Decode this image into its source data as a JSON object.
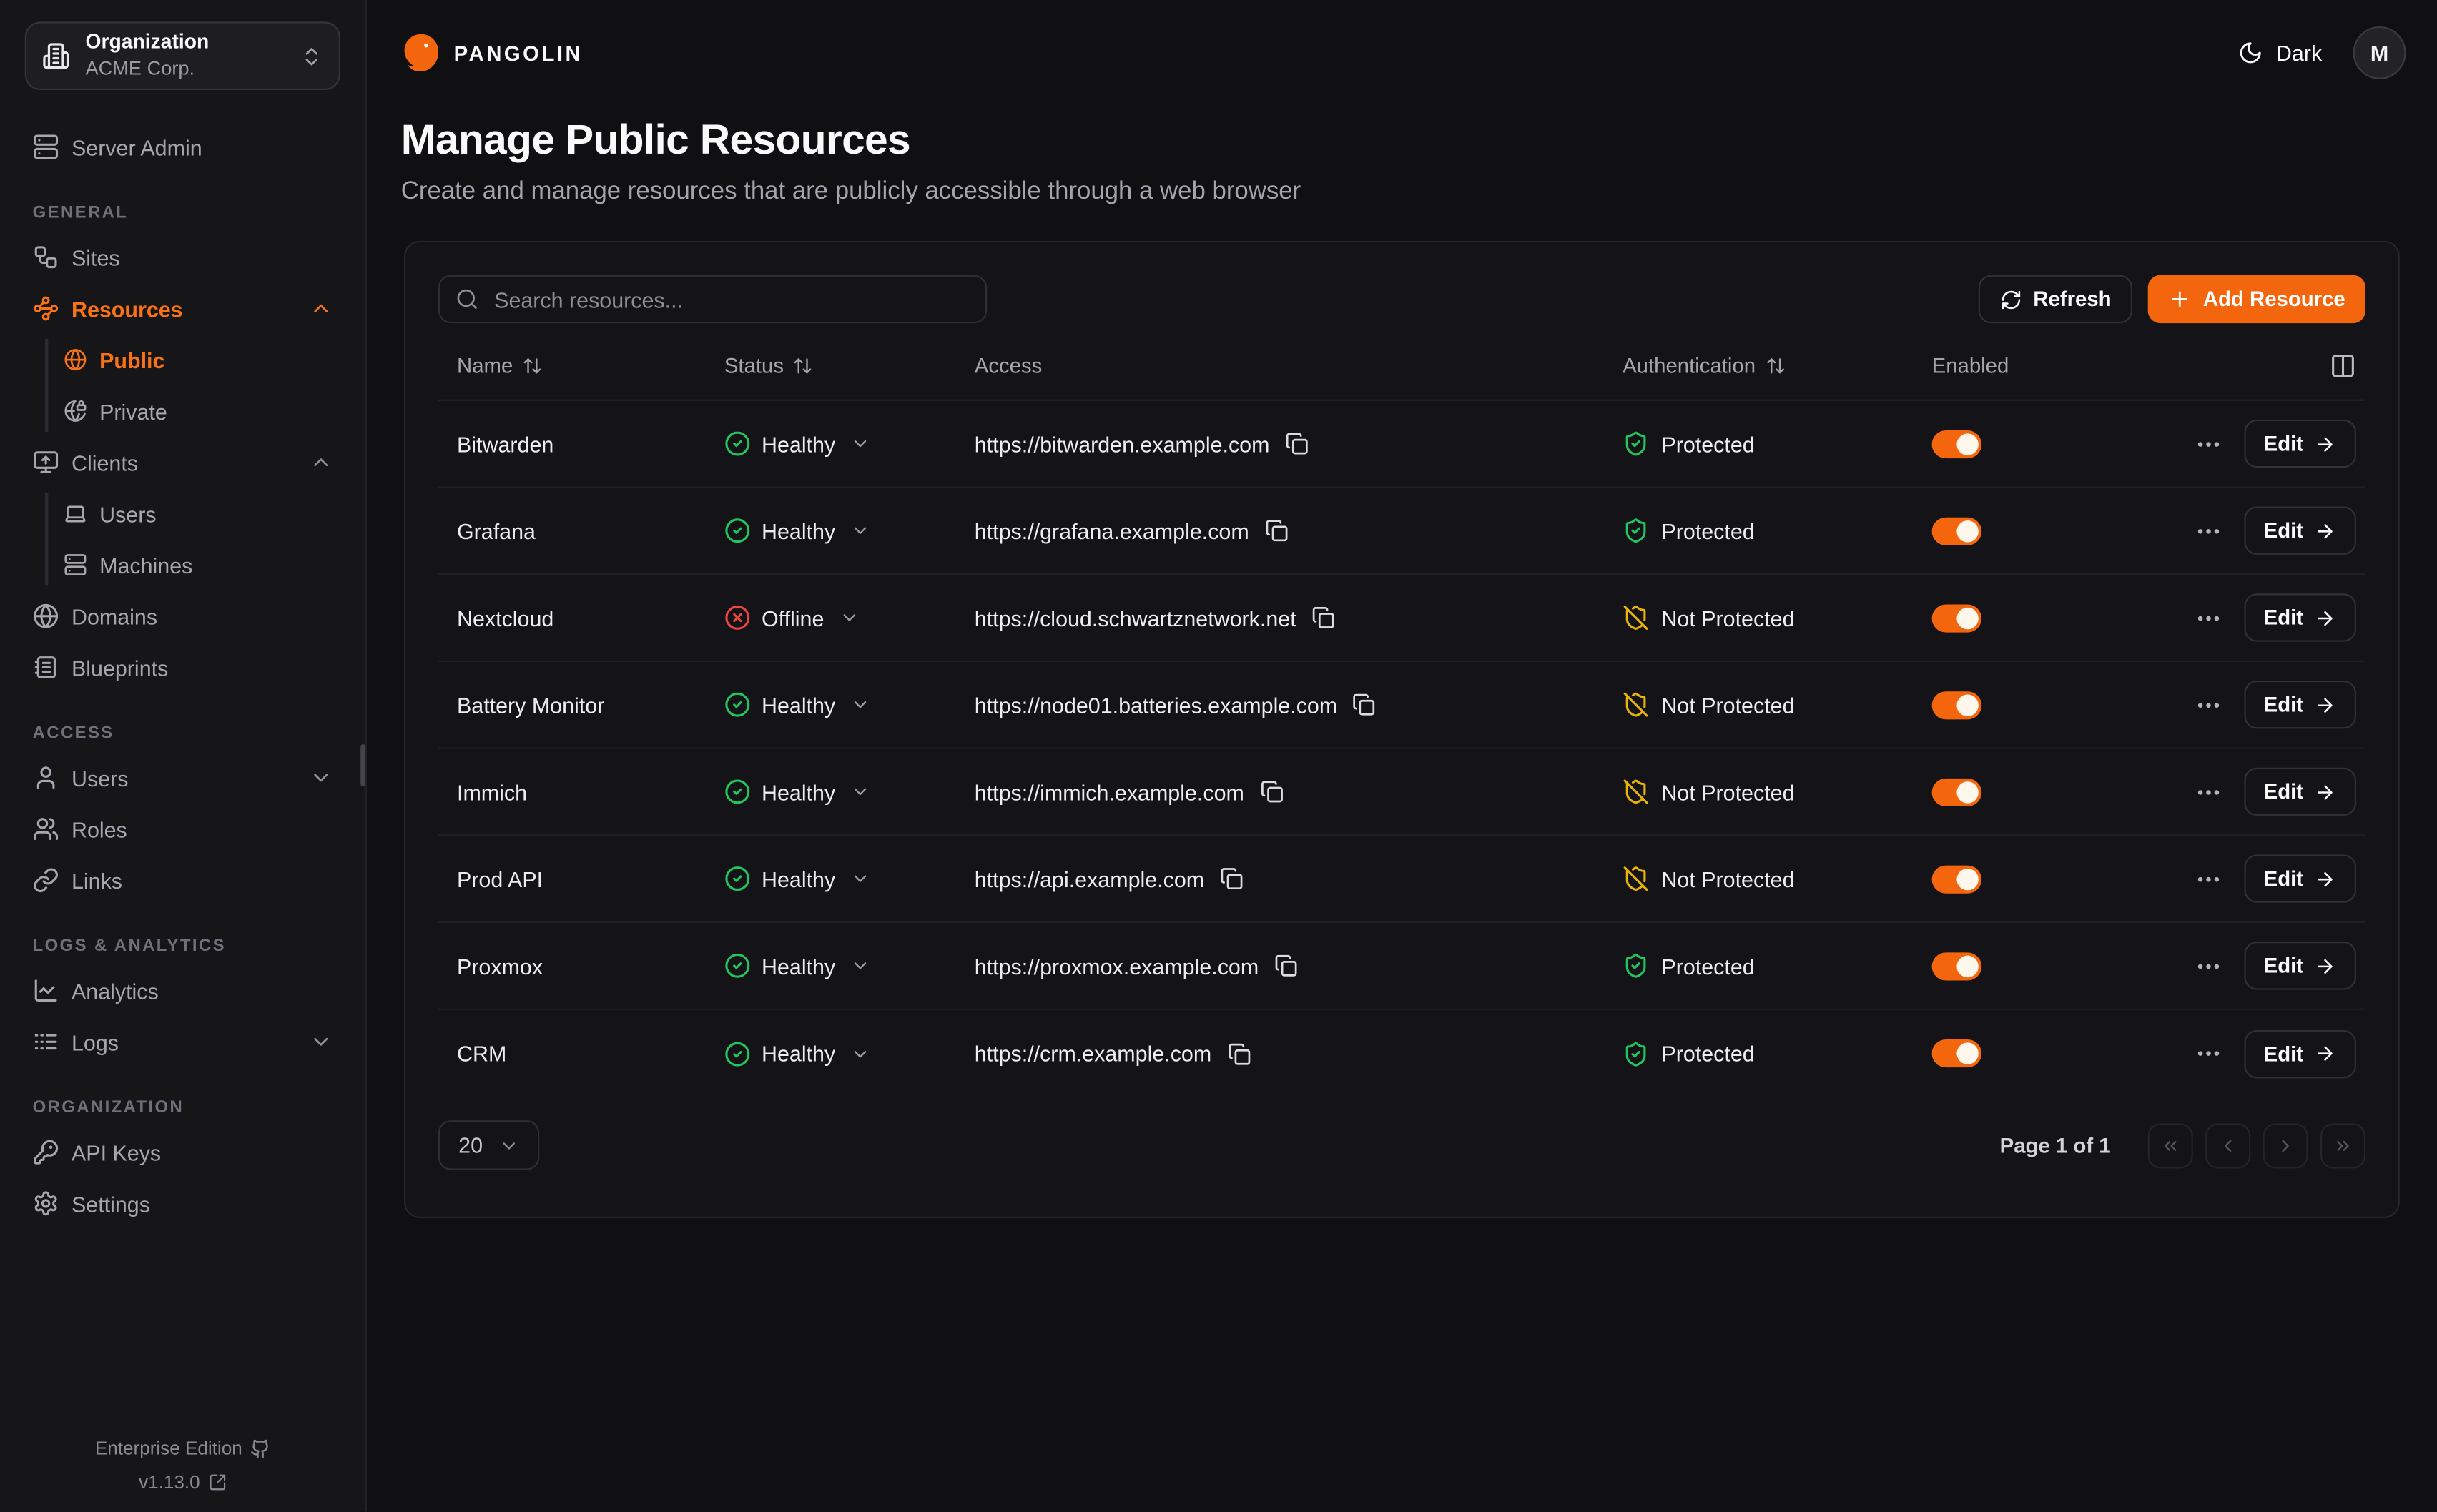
{
  "colors": {
    "accent": "#F4660D",
    "sidebar_active": "#F97316",
    "status_healthy": "#22C55E",
    "status_offline": "#EF4444",
    "auth_protected": "#22C55E",
    "auth_not_protected": "#EAB308"
  },
  "sidebar": {
    "org": {
      "label": "Organization",
      "value": "ACME Corp."
    },
    "server_admin": {
      "label": "Server Admin",
      "icon": "server"
    },
    "sections": [
      {
        "heading": "GENERAL",
        "items": [
          {
            "label": "Sites",
            "icon": "workflow"
          },
          {
            "label": "Resources",
            "icon": "waypoints",
            "active": true,
            "expanded": true,
            "children": [
              {
                "label": "Public",
                "icon": "globe",
                "active": true
              },
              {
                "label": "Private",
                "icon": "globe-lock"
              }
            ]
          },
          {
            "label": "Clients",
            "icon": "monitor-up",
            "expanded": true,
            "children": [
              {
                "label": "Users",
                "icon": "laptop"
              },
              {
                "label": "Machines",
                "icon": "server"
              }
            ]
          },
          {
            "label": "Domains",
            "icon": "globe"
          },
          {
            "label": "Blueprints",
            "icon": "notebook-text"
          }
        ]
      },
      {
        "heading": "ACCESS",
        "items": [
          {
            "label": "Users",
            "icon": "user",
            "collapsible": true
          },
          {
            "label": "Roles",
            "icon": "users"
          },
          {
            "label": "Links",
            "icon": "link"
          }
        ]
      },
      {
        "heading": "LOGS & ANALYTICS",
        "items": [
          {
            "label": "Analytics",
            "icon": "chart-line"
          },
          {
            "label": "Logs",
            "icon": "logs",
            "collapsible": true
          }
        ]
      },
      {
        "heading": "ORGANIZATION",
        "items": [
          {
            "label": "API Keys",
            "icon": "key-round"
          },
          {
            "label": "Settings",
            "icon": "settings"
          }
        ]
      }
    ],
    "footer": {
      "edition": "Enterprise Edition",
      "version": "v1.13.0"
    }
  },
  "topbar": {
    "brand": "PANGOLIN",
    "theme_label": "Dark",
    "avatar_initial": "M"
  },
  "page": {
    "title": "Manage Public Resources",
    "subtitle": "Create and manage resources that are publicly accessible through a web browser"
  },
  "toolbar": {
    "search_placeholder": "Search resources...",
    "refresh_label": "Refresh",
    "add_label": "Add Resource"
  },
  "table": {
    "headers": [
      {
        "label": "Name",
        "sortable": true
      },
      {
        "label": "Status",
        "sortable": true
      },
      {
        "label": "Access",
        "sortable": false
      },
      {
        "label": "Authentication",
        "sortable": true
      },
      {
        "label": "Enabled",
        "sortable": false
      }
    ],
    "edit_label": "Edit",
    "rows": [
      {
        "name": "Bitwarden",
        "status": "Healthy",
        "url": "https://bitwarden.example.com",
        "auth": "Protected",
        "enabled": true
      },
      {
        "name": "Grafana",
        "status": "Healthy",
        "url": "https://grafana.example.com",
        "auth": "Protected",
        "enabled": true
      },
      {
        "name": "Nextcloud",
        "status": "Offline",
        "url": "https://cloud.schwartznetwork.net",
        "auth": "Not Protected",
        "enabled": true
      },
      {
        "name": "Battery Monitor",
        "status": "Healthy",
        "url": "https://node01.batteries.example.com",
        "auth": "Not Protected",
        "enabled": true
      },
      {
        "name": "Immich",
        "status": "Healthy",
        "url": "https://immich.example.com",
        "auth": "Not Protected",
        "enabled": true
      },
      {
        "name": "Prod API",
        "status": "Healthy",
        "url": "https://api.example.com",
        "auth": "Not Protected",
        "enabled": true
      },
      {
        "name": "Proxmox",
        "status": "Healthy",
        "url": "https://proxmox.example.com",
        "auth": "Protected",
        "enabled": true
      },
      {
        "name": "CRM",
        "status": "Healthy",
        "url": "https://crm.example.com",
        "auth": "Protected",
        "enabled": true
      }
    ]
  },
  "pagination": {
    "page_size": "20",
    "info": "Page 1 of 1"
  }
}
